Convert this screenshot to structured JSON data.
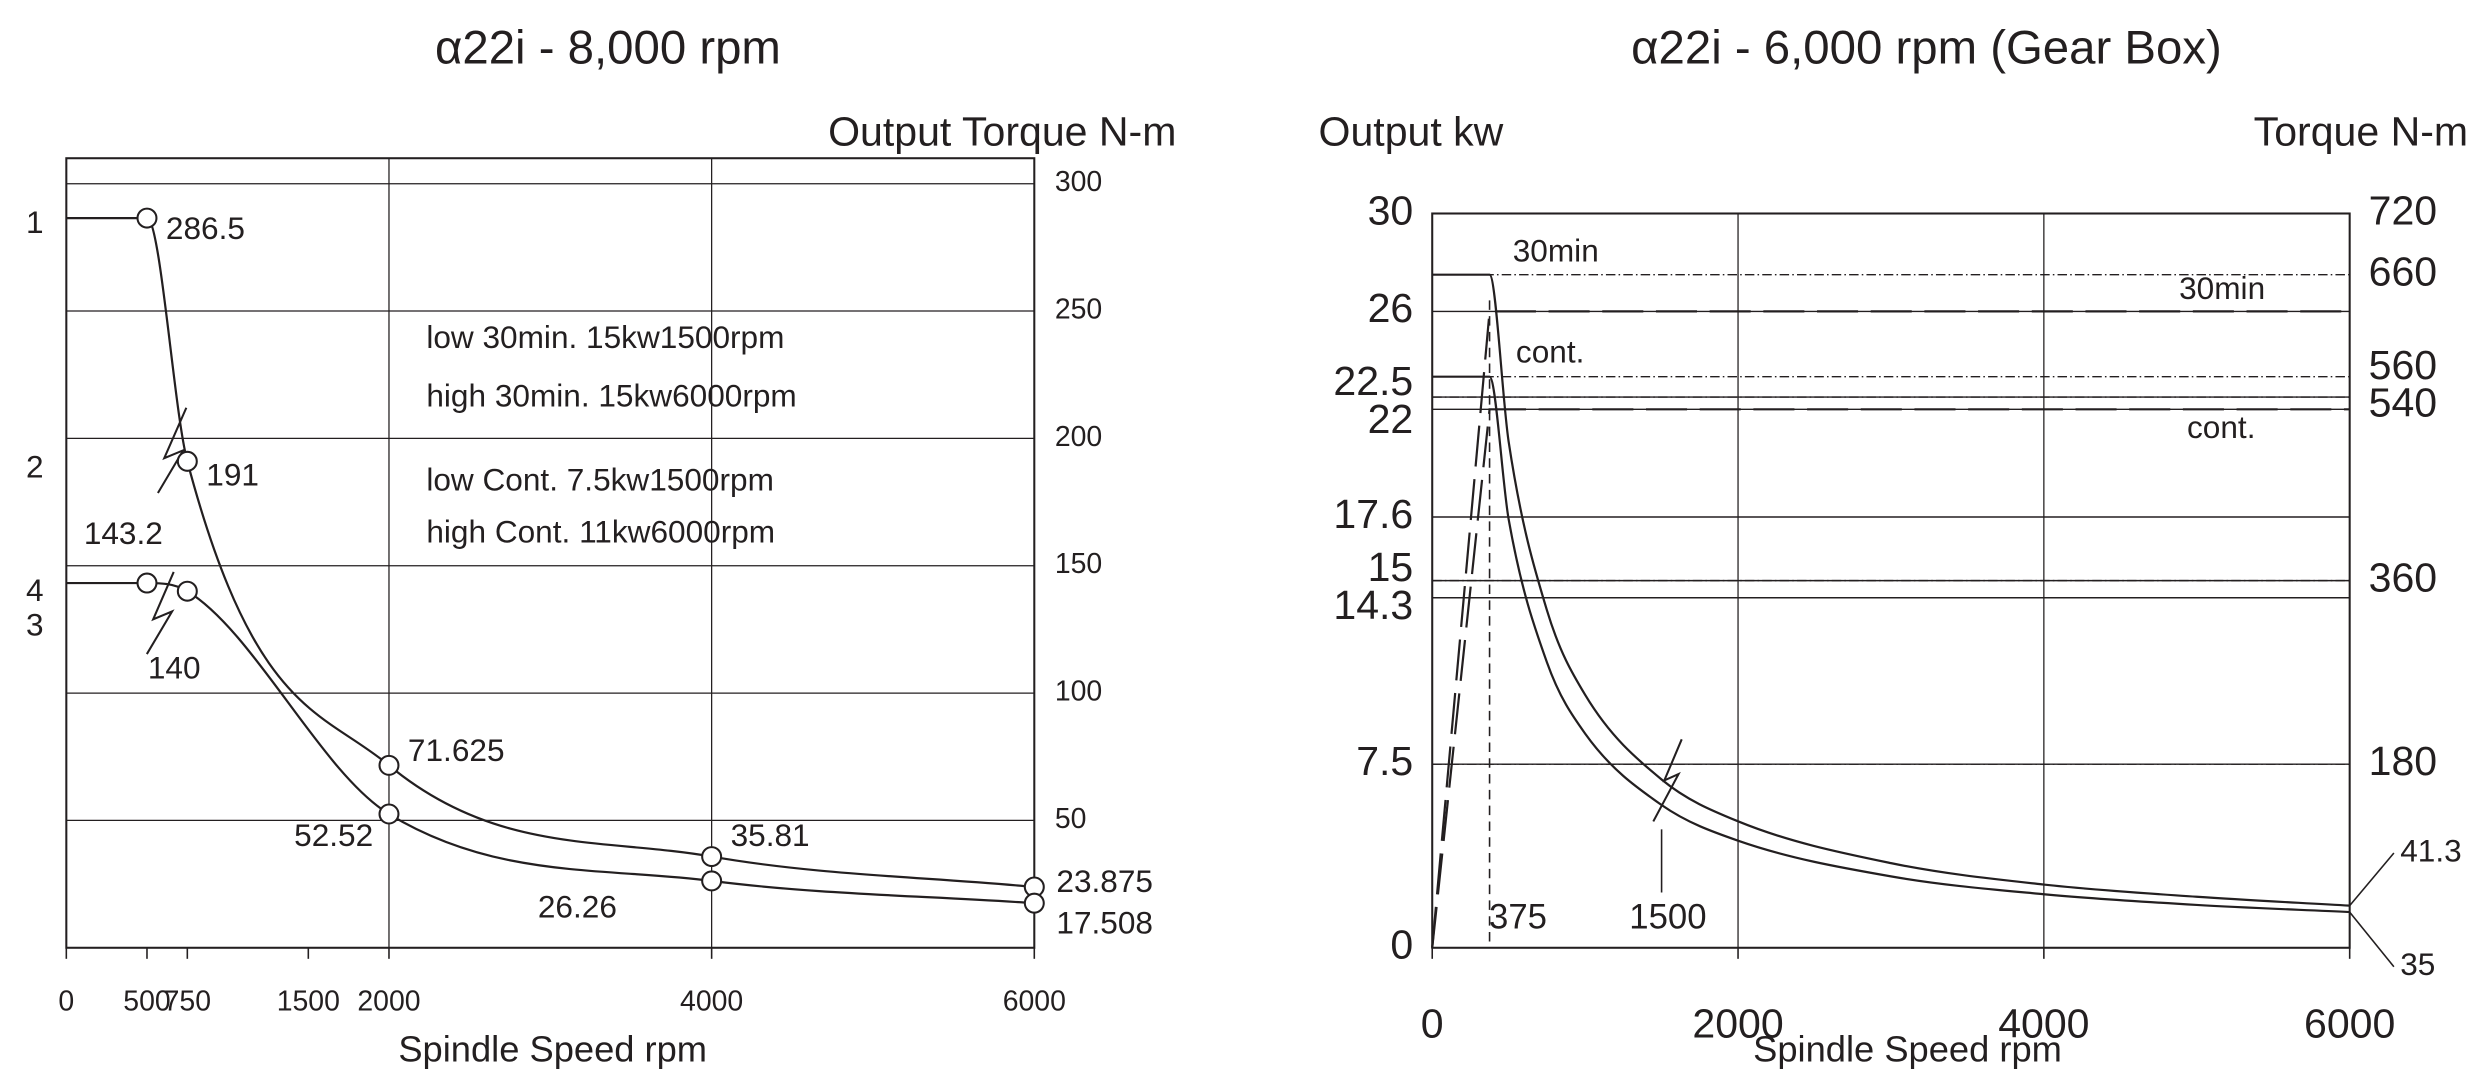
{
  "chart_data": [
    {
      "type": "line",
      "title": "α22i - 8,000 rpm",
      "y_axis_label": "Output Torque N-m",
      "x_axis_label": "Spindle Speed rpm",
      "xlim": [
        0,
        6000
      ],
      "xticks": [
        0,
        500,
        750,
        1500,
        2000,
        4000,
        6000
      ],
      "ylim": [
        0,
        310
      ],
      "yticks": [
        50,
        100,
        150,
        200,
        250,
        300
      ],
      "grid": true,
      "curve_numbers": [
        "1",
        "2",
        "4",
        "3"
      ],
      "notes": [
        "low 30min. 15kw1500rpm",
        "high 30min. 15kw6000rpm",
        "low Cont. 7.5kw1500rpm",
        "high Cont. 11kw6000rpm"
      ],
      "series": [
        {
          "color": "#231f20",
          "x": [
            0,
            500,
            750,
            2000,
            4000,
            6000
          ],
          "values": [
            286.5,
            286.5,
            191,
            71.625,
            35.81,
            23.875
          ]
        },
        {
          "color": "#231f20",
          "x": [
            0,
            500,
            750,
            2000,
            4000,
            6000
          ],
          "values": [
            143.2,
            143.2,
            140,
            52.52,
            26.26,
            17.508
          ]
        }
      ]
    },
    {
      "type": "line",
      "title": "α22i - 6,000 rpm (Gear Box)",
      "y_axis_label": "Output kw",
      "y2_axis_label": "Torque N-m",
      "x_axis_label": "Spindle Speed rpm",
      "xlim": [
        0,
        6000
      ],
      "xticks": [
        0,
        2000,
        4000,
        6000
      ],
      "ylim": [
        0,
        30
      ],
      "yticks": [
        0,
        7.5,
        14.3,
        15,
        17.6,
        22,
        22.5,
        26,
        30
      ],
      "y2lim": [
        0,
        720
      ],
      "y2ticks": [
        180,
        360,
        540,
        560,
        660,
        720
      ],
      "grid": true,
      "annotated_speeds": [
        375,
        1500
      ],
      "series": [
        {
          "name": "30min",
          "color": "#231f20",
          "dashed": true,
          "x": [
            0,
            375,
            6000
          ],
          "values": [
            0,
            26,
            26
          ]
        },
        {
          "name": "cont.",
          "color": "#231f20",
          "dashed": true,
          "x": [
            0,
            375,
            6000
          ],
          "values": [
            0,
            22,
            22
          ]
        },
        {
          "name": "30min",
          "color": "#231f20",
          "axis": "y2",
          "x": [
            0,
            375,
            500,
            750,
            1000,
            1500,
            2000,
            3000,
            4000,
            5000,
            6000
          ],
          "values": [
            660,
            660,
            496,
            331,
            248,
            165,
            124,
            83,
            62,
            50,
            41.3
          ]
        },
        {
          "name": "cont.",
          "color": "#231f20",
          "axis": "y2",
          "x": [
            0,
            375,
            500,
            750,
            1000,
            1500,
            2000,
            3000,
            4000,
            5000,
            6000
          ],
          "values": [
            560,
            560,
            420,
            280,
            210,
            140,
            105,
            70,
            52.5,
            42,
            35
          ]
        }
      ]
    }
  ]
}
